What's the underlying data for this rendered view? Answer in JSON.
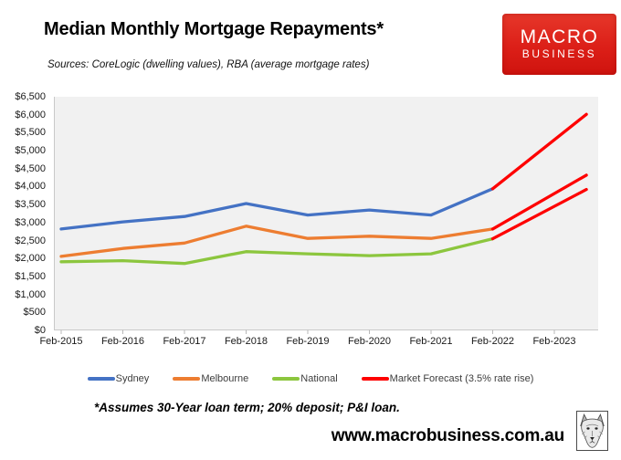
{
  "header": {
    "title": "Median Monthly Mortgage Repayments*",
    "subtitle": "Sources: CoreLogic (dwelling values), RBA (average mortgage rates)"
  },
  "logo": {
    "line1": "MACRO",
    "line2": "BUSINESS",
    "bg_color": "#dc1f18"
  },
  "chart_data": {
    "type": "line",
    "title": "Median Monthly Mortgage Repayments*",
    "xlabel": "",
    "ylabel": "",
    "categories": [
      "Feb-2015",
      "Feb-2016",
      "Feb-2017",
      "Feb-2018",
      "Feb-2019",
      "Feb-2020",
      "Feb-2021",
      "Feb-2022",
      "Feb-2023"
    ],
    "y_ticks": [
      "$0",
      "$500",
      "$1,000",
      "$1,500",
      "$2,000",
      "$2,500",
      "$3,000",
      "$3,500",
      "$4,000",
      "$4,500",
      "$5,000",
      "$5,500",
      "$6,000",
      "$6,500"
    ],
    "ylim": [
      0,
      6500
    ],
    "y_step": 500,
    "grid": false,
    "plot_bg": "#f1f1f1",
    "legend_position": "bottom",
    "series": [
      {
        "name": "Sydney",
        "color": "#4472c4",
        "x": [
          0,
          1,
          2,
          3,
          4,
          5,
          6,
          7
        ],
        "values": [
          2820,
          3020,
          3170,
          3530,
          3210,
          3350,
          3210,
          3940
        ]
      },
      {
        "name": "Melbourne",
        "color": "#ed7d31",
        "x": [
          0,
          1,
          2,
          3,
          4,
          5,
          6,
          7
        ],
        "values": [
          2060,
          2280,
          2430,
          2900,
          2560,
          2620,
          2560,
          2820
        ]
      },
      {
        "name": "National",
        "color": "#8cc63e",
        "x": [
          0,
          1,
          2,
          3,
          4,
          5,
          6,
          7
        ],
        "values": [
          1910,
          1940,
          1860,
          2190,
          2130,
          2080,
          2130,
          2550
        ]
      },
      {
        "name": "Market Forecast (3.5% rate rise)",
        "color": "#fe0000",
        "segments": [
          {
            "extends": "Sydney",
            "points": [
              [
                7,
                3940
              ],
              [
                8.52,
                6010
              ]
            ]
          },
          {
            "extends": "Melbourne",
            "points": [
              [
                7,
                2820
              ],
              [
                8.52,
                4320
              ]
            ]
          },
          {
            "extends": "National",
            "points": [
              [
                7,
                2550
              ],
              [
                8.52,
                3920
              ]
            ]
          }
        ]
      }
    ]
  },
  "footnote": "*Assumes 30-Year loan term; 20% deposit; P&I loan.",
  "footer": {
    "url": "www.macrobusiness.com.au"
  }
}
